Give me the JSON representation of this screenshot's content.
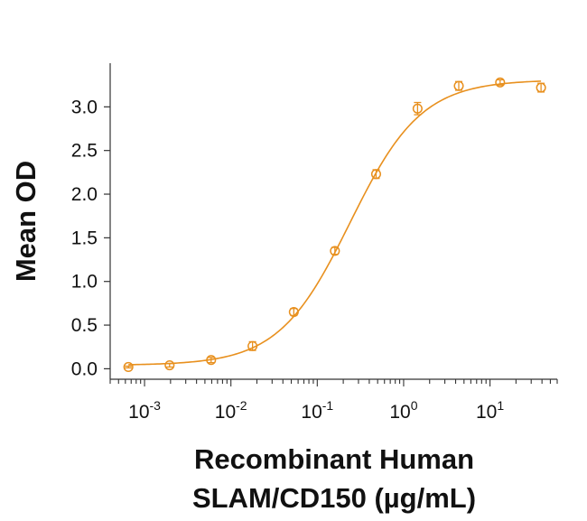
{
  "chart_data": {
    "type": "scatter",
    "title": "",
    "ylabel": "Mean OD",
    "xlabel_lines": [
      "Recombinant Human",
      "SLAM/CD150 (µg/mL)"
    ],
    "x_scale": "log",
    "xlim": [
      0.0004,
      60
    ],
    "ylim": [
      -0.12,
      3.5
    ],
    "x_ticks": [
      {
        "value": 0.001,
        "base": "10",
        "exp": "-3"
      },
      {
        "value": 0.01,
        "base": "10",
        "exp": "-2"
      },
      {
        "value": 0.1,
        "base": "10",
        "exp": "-1"
      },
      {
        "value": 1,
        "base": "10",
        "exp": "0"
      },
      {
        "value": 10,
        "base": "10",
        "exp": "1"
      }
    ],
    "y_ticks": [
      {
        "value": 0.0,
        "label": "0.0"
      },
      {
        "value": 0.5,
        "label": "0.5"
      },
      {
        "value": 1.0,
        "label": "1.0"
      },
      {
        "value": 1.5,
        "label": "1.5"
      },
      {
        "value": 2.0,
        "label": "2.0"
      },
      {
        "value": 2.5,
        "label": "2.5"
      },
      {
        "value": 3.0,
        "label": "3.0"
      }
    ],
    "grid": false,
    "legend": "none",
    "color": "#E8901E",
    "series": [
      {
        "x": [
          0.00065,
          0.00195,
          0.0059,
          0.0178,
          0.0535,
          0.16,
          0.48,
          1.45,
          4.35,
          13.1,
          39.0
        ],
        "y": [
          0.02,
          0.04,
          0.1,
          0.26,
          0.65,
          1.35,
          2.23,
          2.98,
          3.24,
          3.28,
          3.22
        ],
        "error": [
          0.01,
          0.02,
          0.03,
          0.05,
          0.04,
          0.04,
          0.05,
          0.07,
          0.05,
          0.03,
          0.05
        ]
      }
    ],
    "fit_curve": {
      "model": "4PL",
      "bottom": 0.04,
      "top": 3.31,
      "ec50": 0.24,
      "hill": 1.05
    }
  }
}
